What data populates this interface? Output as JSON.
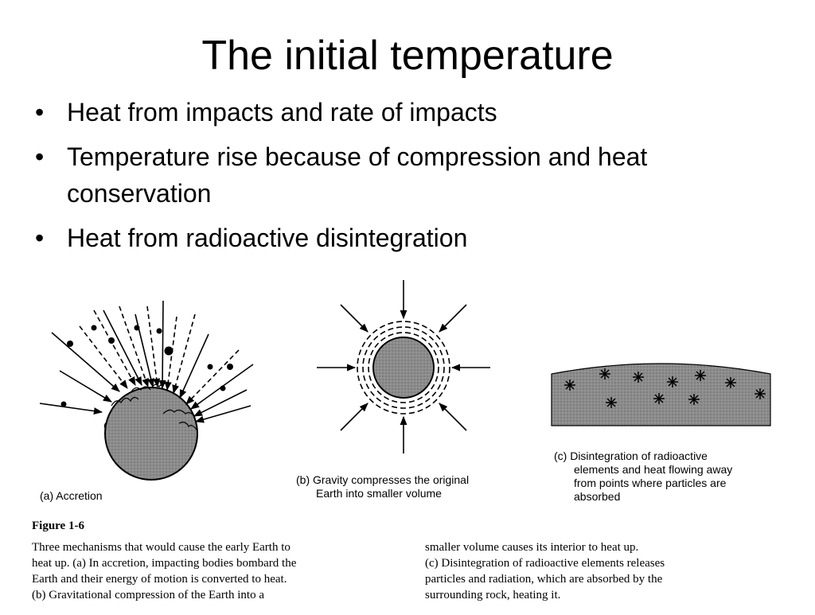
{
  "slide": {
    "title": "The initial temperature",
    "bullets": [
      "Heat from impacts and rate of impacts",
      "Temperature rise because of compression and heat conservation",
      "Heat from radioactive disintegration"
    ]
  },
  "figure": {
    "panel_a_label": "(a) Accretion",
    "panel_b_label_line1": "(b) Gravity compresses the original",
    "panel_b_label_line2": "Earth into smaller volume",
    "panel_c_label_line1": "(c) Disintegration of radioactive",
    "panel_c_label_line2": "elements and heat flowing away",
    "panel_c_label_line3": "from points where particles are",
    "panel_c_label_line4": "absorbed",
    "figure_number": "Figure 1-6",
    "caption_left": [
      "Three mechanisms that would cause the early Earth to",
      "heat up. (a) In accretion, impacting bodies bombard the",
      "Earth and their energy of motion is converted to heat.",
      "(b) Gravitational compression of the Earth into a"
    ],
    "caption_right": [
      "smaller volume causes its interior to heat up.",
      "(c) Disintegration of radioactive elements releases",
      "particles and radiation, which are absorbed by the",
      "surrounding rock, heating it."
    ]
  },
  "colors": {
    "earth_fill": "#8a8a8a",
    "ink": "#000000",
    "rock_fill": "#999999"
  }
}
